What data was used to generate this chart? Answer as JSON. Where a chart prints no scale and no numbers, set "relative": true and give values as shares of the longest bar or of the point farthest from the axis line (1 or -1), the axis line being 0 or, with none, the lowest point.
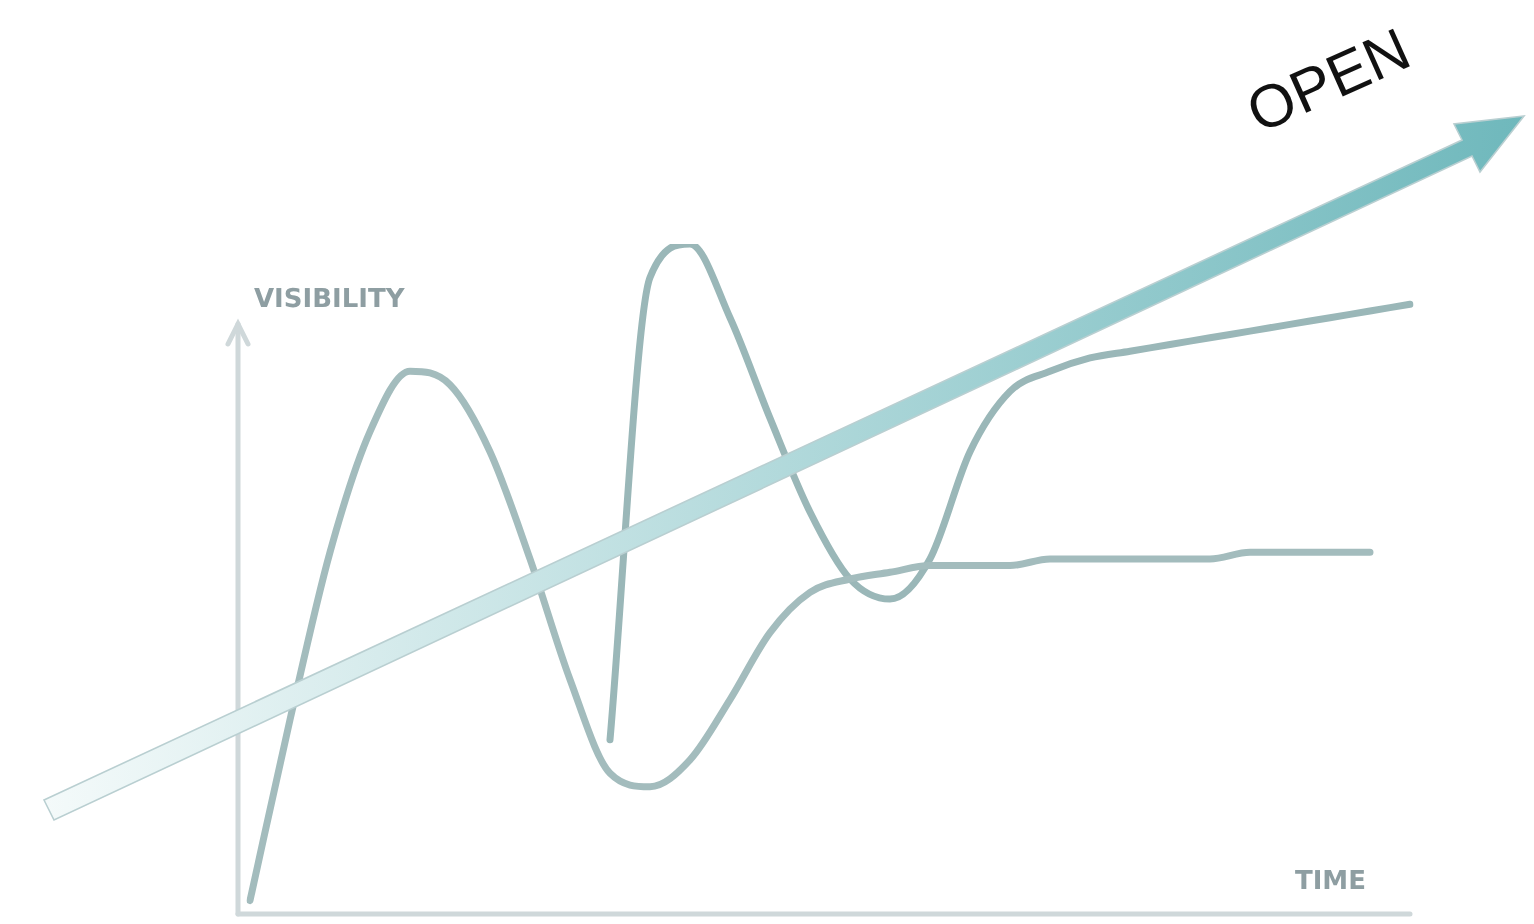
{
  "chart_data": {
    "type": "line",
    "relative": true,
    "xlabel": "TIME",
    "ylabel": "VISIBILITY",
    "annotations": [
      "OPEN"
    ],
    "legend": false,
    "marker": "none",
    "line_style": "solid",
    "categories": [
      null,
      null,
      null,
      null,
      null,
      null,
      null,
      null,
      null,
      null,
      null,
      null,
      null,
      null,
      null,
      null,
      null,
      null,
      null,
      null,
      null,
      null,
      null,
      null,
      null,
      null,
      null,
      null,
      null,
      null
    ],
    "series": [
      {
        "color": "#a3bcbd",
        "values": [
          0.02,
          0.29,
          0.54,
          0.72,
          0.81,
          0.79,
          0.69,
          0.53,
          0.35,
          0.21,
          0.19,
          0.23,
          0.32,
          0.42,
          0.48,
          0.5,
          0.51,
          0.52,
          0.52,
          0.52,
          0.53,
          0.53,
          0.53,
          0.53,
          0.53,
          0.54,
          0.54,
          0.54,
          0.54,
          null
        ]
      },
      {
        "color": "#9ab7b8",
        "values": [
          null,
          null,
          null,
          null,
          null,
          null,
          null,
          null,
          null,
          0.26,
          0.95,
          1.0,
          0.89,
          0.74,
          0.6,
          0.5,
          0.47,
          0.53,
          0.69,
          0.78,
          0.81,
          0.83,
          0.84,
          0.85,
          0.86,
          0.87,
          0.88,
          0.89,
          0.9,
          0.91
        ]
      }
    ]
  }
}
